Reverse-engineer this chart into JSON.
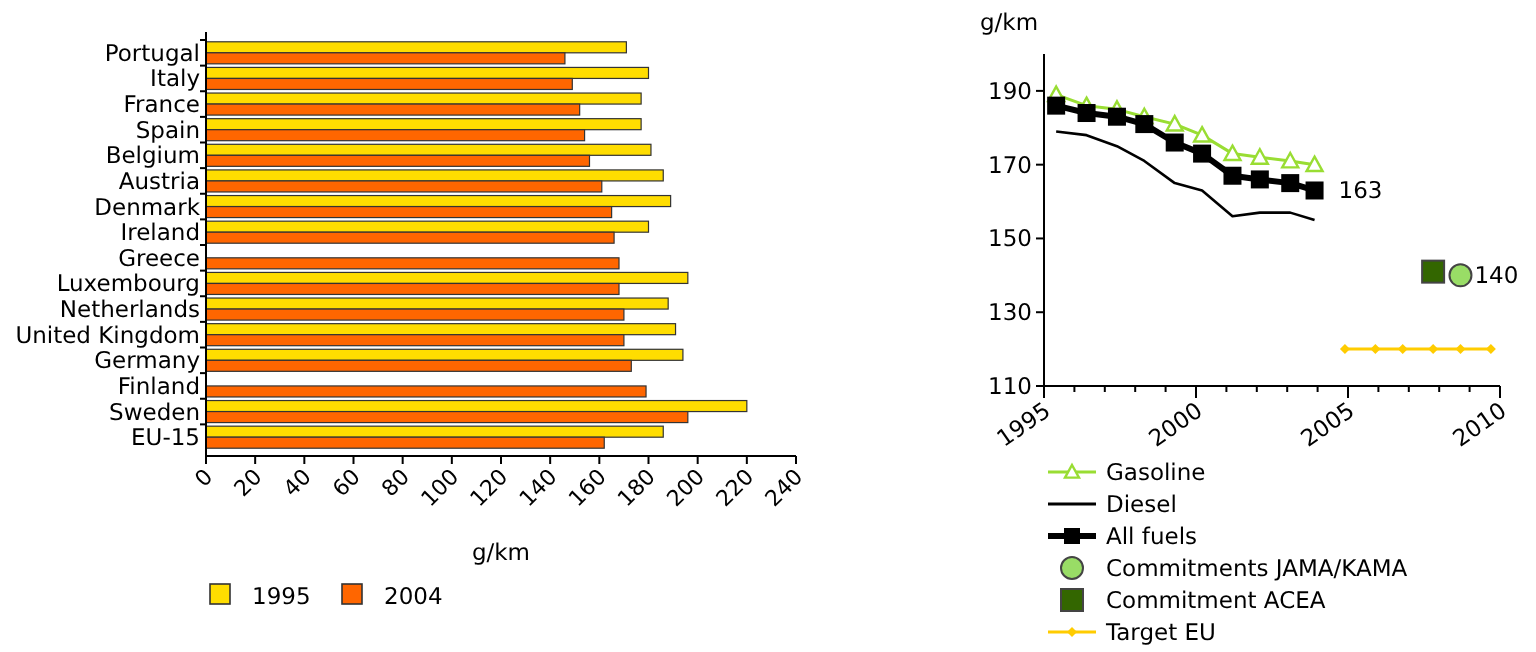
{
  "chart_data": [
    {
      "type": "bar",
      "orientation": "horizontal",
      "xlabel": "g/km",
      "categories": [
        "Portugal",
        "Italy",
        "France",
        "Spain",
        "Belgium",
        "Austria",
        "Denmark",
        "Ireland",
        "Greece",
        "Luxembourg",
        "Netherlands",
        "United Kingdom",
        "Germany",
        "Finland",
        "Sweden",
        "EU-15"
      ],
      "series": [
        {
          "name": "1995",
          "color": "#ffdd00",
          "values": [
            171,
            180,
            177,
            177,
            181,
            186,
            189,
            180,
            null,
            196,
            188,
            191,
            194,
            null,
            220,
            186
          ]
        },
        {
          "name": "2004",
          "color": "#ff6600",
          "values": [
            146,
            149,
            152,
            154,
            156,
            161,
            165,
            166,
            168,
            168,
            170,
            170,
            173,
            179,
            196,
            162
          ]
        }
      ],
      "xlim": [
        0,
        240
      ],
      "xticks": [
        0,
        20,
        40,
        60,
        80,
        100,
        120,
        140,
        160,
        180,
        200,
        220,
        240
      ],
      "legend": "bottom"
    },
    {
      "type": "line",
      "ylabel": "g/km",
      "xlim": [
        1995,
        2010
      ],
      "xticks": [
        1995,
        2000,
        2005,
        2010
      ],
      "ylim": [
        110,
        200
      ],
      "yticks": [
        110,
        130,
        150,
        170,
        190
      ],
      "legend": "bottom",
      "series": [
        {
          "name": "Gasoline",
          "color": "#99dd33",
          "marker": "triangle",
          "x": [
            1995.4,
            1996.4,
            1997.4,
            1998.3,
            1999.3,
            2000.2,
            2001.2,
            2002.1,
            2003.1,
            2003.9
          ],
          "values": [
            189,
            186,
            185,
            183,
            181,
            178,
            173,
            172,
            171,
            170
          ]
        },
        {
          "name": "Diesel",
          "color": "#000000",
          "marker": "none",
          "x": [
            1995.4,
            1996.4,
            1997.4,
            1998.3,
            1999.3,
            2000.2,
            2001.2,
            2002.1,
            2003.1,
            2003.9
          ],
          "values": [
            179,
            178,
            175,
            171,
            165,
            163,
            156,
            157,
            157,
            155
          ]
        },
        {
          "name": "All fuels",
          "color": "#000000",
          "marker": "square",
          "x": [
            1995.4,
            1996.4,
            1997.4,
            1998.3,
            1999.3,
            2000.2,
            2001.2,
            2002.1,
            2003.1,
            2003.9
          ],
          "values": [
            186,
            184,
            183,
            181,
            176,
            173,
            167,
            166,
            165,
            163
          ],
          "value_labels": [
            null,
            null,
            null,
            null,
            null,
            null,
            null,
            null,
            null,
            "163"
          ]
        },
        {
          "name": "Commitments JAMA/KAMA",
          "type": "scatter",
          "color": "#99dd66",
          "marker": "circle",
          "x": [
            2008.7
          ],
          "values": [
            140
          ],
          "value_labels": [
            "140"
          ]
        },
        {
          "name": "Commitment ACEA",
          "type": "scatter",
          "color": "#336600",
          "marker": "square",
          "x": [
            2007.8
          ],
          "values": [
            141
          ]
        },
        {
          "name": "Target EU",
          "color": "#ffcc00",
          "marker": "diamond",
          "x": [
            2004.9,
            2005.9,
            2006.8,
            2007.8,
            2008.7,
            2009.7
          ],
          "values": [
            120,
            120,
            120,
            120,
            120,
            120
          ]
        }
      ]
    }
  ]
}
